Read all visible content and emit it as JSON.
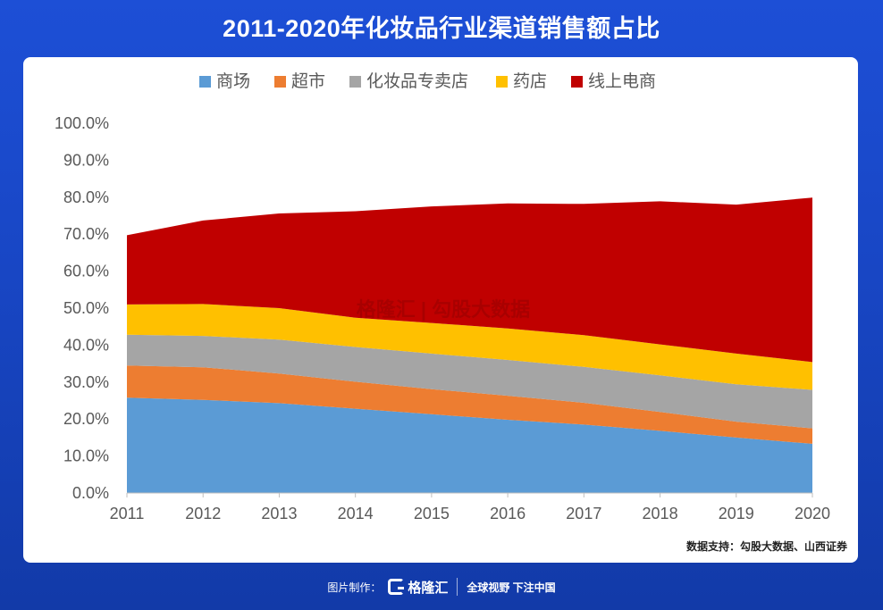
{
  "title": "2011-2020年化妆品行业渠道销售额占比",
  "chart_data": {
    "type": "area",
    "stacked": true,
    "title": "2011-2020年化妆品行业渠道销售额占比",
    "categories": [
      "2011",
      "2012",
      "2013",
      "2014",
      "2015",
      "2016",
      "2017",
      "2018",
      "2019",
      "2020"
    ],
    "ylim": [
      0,
      100
    ],
    "yticks": [
      "0.0%",
      "10.0%",
      "20.0%",
      "30.0%",
      "40.0%",
      "50.0%",
      "60.0%",
      "70.0%",
      "80.0%",
      "90.0%",
      "100.0%"
    ],
    "legend_position": "top",
    "series": [
      {
        "name": "商场",
        "color": "#5b9bd5",
        "values": [
          25.8,
          25.2,
          24.3,
          22.8,
          21.3,
          19.8,
          18.5,
          16.8,
          15.0,
          13.3
        ]
      },
      {
        "name": "超市",
        "color": "#ed7d31",
        "values": [
          8.7,
          8.8,
          8.0,
          7.3,
          6.8,
          6.5,
          5.9,
          5.1,
          4.3,
          4.2
        ]
      },
      {
        "name": "化妆品专卖店",
        "color": "#a5a5a5",
        "values": [
          8.3,
          8.5,
          9.2,
          9.4,
          9.6,
          9.7,
          9.7,
          9.9,
          10.1,
          10.4
        ]
      },
      {
        "name": "药店",
        "color": "#ffc000",
        "values": [
          8.2,
          8.6,
          8.5,
          7.9,
          8.3,
          8.5,
          8.6,
          8.4,
          8.3,
          7.5
        ]
      },
      {
        "name": "线上电商",
        "color": "#c00000",
        "values": [
          18.7,
          22.6,
          25.6,
          28.8,
          31.5,
          33.8,
          35.5,
          38.7,
          40.3,
          44.5
        ]
      }
    ]
  },
  "source": "数据支持：勾股大数据、山西证券",
  "watermark": "格隆汇 | 勾股大数据",
  "footer": {
    "credit": "图片制作：",
    "brand": "格隆汇",
    "slogan": "全球视野 下注中国"
  }
}
